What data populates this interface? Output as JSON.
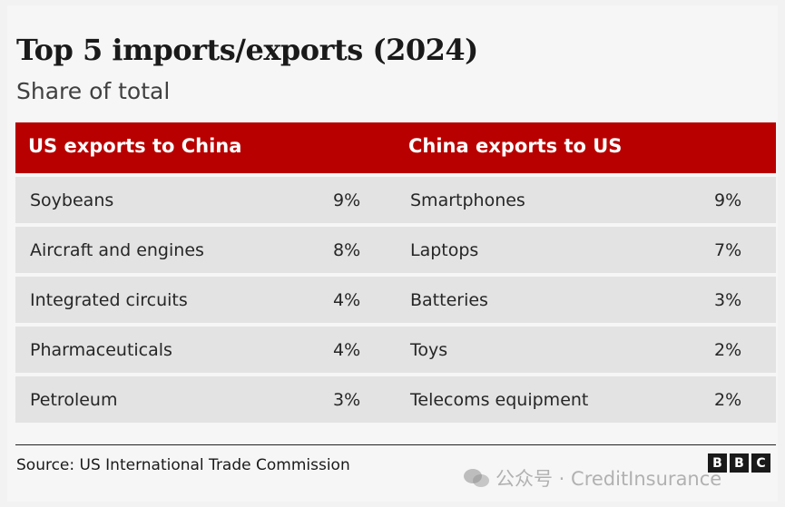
{
  "title": "Top 5 imports/exports (2024)",
  "subtitle": "Share of total",
  "source": "Source: US International Trade Commission",
  "logo": [
    "B",
    "B",
    "C"
  ],
  "watermark": "公众号 · CreditInsurance",
  "colors": {
    "header": "#b80000",
    "row": "#e3e3e3"
  },
  "chart_data": {
    "type": "table",
    "columns": [
      "US exports to China",
      "China exports to US"
    ],
    "us_exports_to_china": [
      {
        "item": "Soybeans",
        "share": "9%"
      },
      {
        "item": "Aircraft and engines",
        "share": "8%"
      },
      {
        "item": "Integrated circuits",
        "share": "4%"
      },
      {
        "item": "Pharmaceuticals",
        "share": "4%"
      },
      {
        "item": "Petroleum",
        "share": "3%"
      }
    ],
    "china_exports_to_us": [
      {
        "item": "Smartphones",
        "share": "9%"
      },
      {
        "item": "Laptops",
        "share": "7%"
      },
      {
        "item": "Batteries",
        "share": "3%"
      },
      {
        "item": "Toys",
        "share": "2%"
      },
      {
        "item": "Telecoms equipment",
        "share": "2%"
      }
    ]
  }
}
